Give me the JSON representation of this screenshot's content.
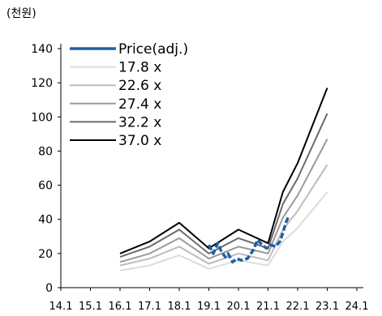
{
  "chart_data": {
    "type": "line",
    "unit_label": "(천원)",
    "x_ticks": [
      "14.1",
      "15.1",
      "16.1",
      "17.1",
      "18.1",
      "19.1",
      "20.1",
      "21.1",
      "22.1",
      "23.1",
      "24.1"
    ],
    "y_ticks": [
      0,
      20,
      40,
      60,
      80,
      100,
      120,
      140
    ],
    "ylim": [
      0,
      140
    ],
    "grid": false,
    "legend_position": "top-left",
    "band_x": [
      16.0,
      17.0,
      18.0,
      19.0,
      20.0,
      21.0,
      21.5,
      22.0,
      23.0
    ],
    "series": [
      {
        "name": "17.8 x",
        "color": "#dcdcdc",
        "width": 2,
        "values": [
          10,
          13,
          19,
          11,
          16,
          13,
          27,
          35,
          56
        ]
      },
      {
        "name": "22.6 x",
        "color": "#bdbdbd",
        "width": 2,
        "values": [
          13,
          17,
          24,
          14,
          20,
          16,
          34,
          45,
          72
        ]
      },
      {
        "name": "27.4 x",
        "color": "#9a9a9a",
        "width": 2,
        "values": [
          15,
          20,
          29,
          17,
          24,
          20,
          41,
          54,
          87
        ]
      },
      {
        "name": "32.2 x",
        "color": "#6b6b6b",
        "width": 2,
        "values": [
          18,
          24,
          34,
          20,
          29,
          23,
          49,
          64,
          102
        ]
      },
      {
        "name": "37.0 x",
        "color": "#000000",
        "width": 2,
        "values": [
          20,
          27,
          38,
          23,
          34,
          26,
          56,
          73,
          117
        ]
      }
    ],
    "price": {
      "name": "Price(adj.)",
      "color": "#1f5fa8",
      "x": [
        19.0,
        19.15,
        19.3,
        19.4,
        19.55,
        19.65,
        19.8,
        19.95,
        20.1,
        20.3,
        20.5,
        20.65,
        20.8,
        20.95,
        21.1,
        21.25,
        21.4,
        21.5,
        21.6,
        21.7
      ],
      "y": [
        25,
        20,
        26,
        22,
        18,
        20,
        15,
        17,
        16,
        17,
        22,
        28,
        25,
        23,
        25,
        24,
        27,
        32,
        38,
        42
      ]
    }
  }
}
